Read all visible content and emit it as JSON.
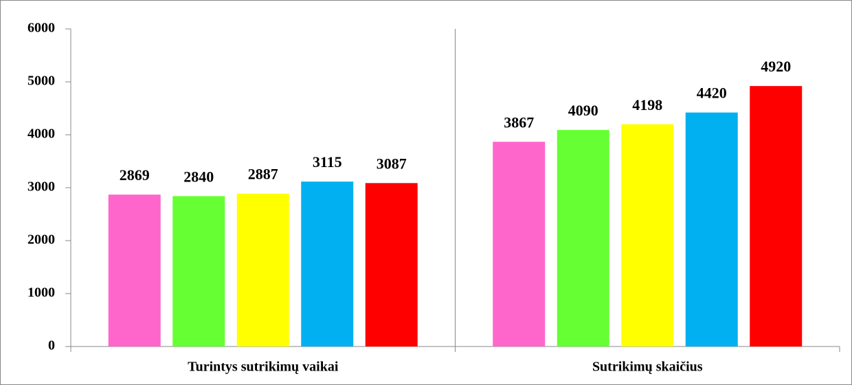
{
  "chart_data": {
    "type": "bar",
    "categories": [
      "Turintys sutrikimų vaikai",
      "Sutrikimų skaičius"
    ],
    "series": [
      {
        "color": "#ff66cc",
        "values": [
          2869,
          3867
        ]
      },
      {
        "color": "#66ff33",
        "values": [
          2840,
          4090
        ]
      },
      {
        "color": "#ffff00",
        "values": [
          2887,
          4198
        ]
      },
      {
        "color": "#00b0f0",
        "values": [
          3115,
          4420
        ]
      },
      {
        "color": "#ff0000",
        "values": [
          3087,
          4920
        ]
      }
    ],
    "ylim": [
      0,
      6000
    ],
    "yticks": [
      0,
      1000,
      2000,
      3000,
      4000,
      5000,
      6000
    ]
  }
}
